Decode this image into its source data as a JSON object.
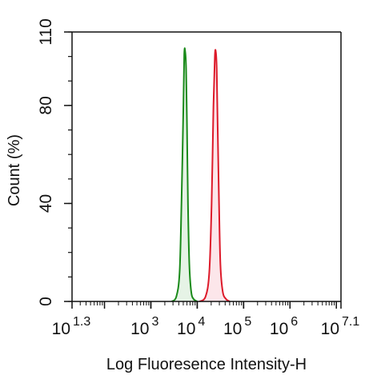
{
  "chart_data": {
    "type": "area",
    "title": "",
    "xlabel": "Log Fluoresence Intensity-H",
    "ylabel": "Count  (%)",
    "x_scale": "log",
    "xlim": [
      1.3,
      7.1
    ],
    "ylim": [
      0,
      110
    ],
    "y_ticks": [
      "0",
      "40",
      "80",
      "110"
    ],
    "x_ticks": [
      {
        "base": "10",
        "exp": "1.3"
      },
      {
        "base": "10",
        "exp": "3"
      },
      {
        "base": "10",
        "exp": "4"
      },
      {
        "base": "10",
        "exp": "5"
      },
      {
        "base": "10",
        "exp": "6"
      },
      {
        "base": "10",
        "exp": "7.1"
      }
    ],
    "grid": false,
    "series": [
      {
        "color": "#1a8a1a",
        "fill": "#e6f3e6",
        "log_x": [
          3.45,
          3.55,
          3.62,
          3.66,
          3.7,
          3.72,
          3.74,
          3.76,
          3.78,
          3.8,
          3.83,
          3.87,
          3.92,
          4.0
        ],
        "y": [
          0,
          2,
          12,
          40,
          78,
          101,
          102,
          95,
          70,
          40,
          15,
          4,
          1,
          0
        ]
      },
      {
        "color": "#dd1a2a",
        "fill": "#fce6ea",
        "log_x": [
          4.05,
          4.18,
          4.26,
          4.31,
          4.35,
          4.38,
          4.4,
          4.42,
          4.44,
          4.47,
          4.5,
          4.55,
          4.62,
          4.7
        ],
        "y": [
          0,
          2,
          12,
          40,
          80,
          100,
          102,
          95,
          72,
          40,
          15,
          4,
          1,
          0
        ]
      }
    ]
  }
}
